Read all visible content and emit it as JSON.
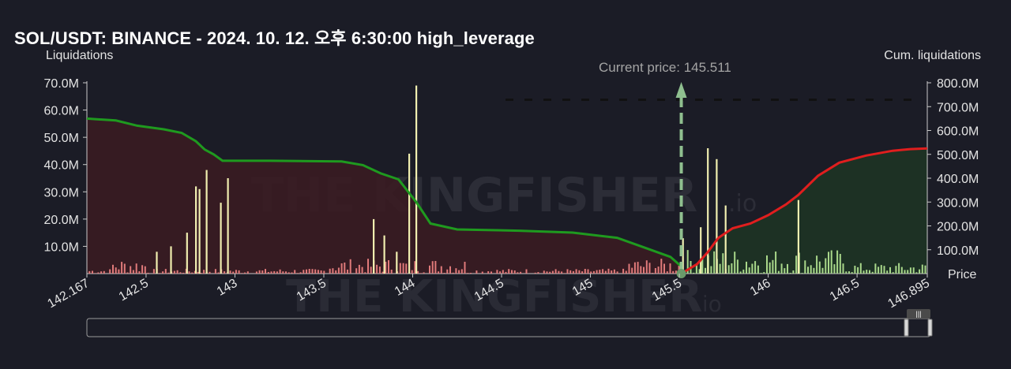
{
  "title": "SOL/USDT: BINANCE - 2024. 10. 12. 오후 6:30:00 high_leverage",
  "watermark": "THE KINGFISHER",
  "watermark_suffix": ".io",
  "colors": {
    "background": "#1b1c26",
    "long_line": "#1f9a1f",
    "short_line": "#e01e1e",
    "long_fill": "#3a1c22",
    "short_fill": "#1d3324",
    "bar_long": "#e07a7a",
    "bar_short": "#a9d88a",
    "bar_highlight": "#f1efb0",
    "current_price_line": "#8fbf8f"
  },
  "chart_data": {
    "type": "bar",
    "title": "SOL/USDT: BINANCE - 2024. 10. 12. 오후 6:30:00 high_leverage",
    "xlabel": "Price",
    "ylabel": "Liquidations",
    "ylabel_right": "Cum. liquidations",
    "xlim": [
      142.167,
      146.895
    ],
    "ylim": [
      0,
      70000000
    ],
    "ylim_right": [
      0,
      800000000
    ],
    "x_ticks": [
      "142.167",
      "142.5",
      "143",
      "143.5",
      "144",
      "144.5",
      "145",
      "145.5",
      "146",
      "146.5",
      "146.895"
    ],
    "y_ticks": [
      "10.0M",
      "20.0M",
      "30.0M",
      "40.0M",
      "50.0M",
      "60.0M",
      "70.0M"
    ],
    "y_ticks_right": [
      "100.0M",
      "200.0M",
      "300.0M",
      "400.0M",
      "500.0M",
      "600.0M",
      "700.0M",
      "800.0M"
    ],
    "current_price": 145.511,
    "current_price_label": "Current price: 145.511",
    "highlight_bars": [
      {
        "x": 142.56,
        "value": 8000000
      },
      {
        "x": 142.64,
        "value": 10000000
      },
      {
        "x": 142.73,
        "value": 15000000
      },
      {
        "x": 142.78,
        "value": 32000000
      },
      {
        "x": 142.8,
        "value": 31000000
      },
      {
        "x": 142.84,
        "value": 38000000
      },
      {
        "x": 142.92,
        "value": 26000000
      },
      {
        "x": 142.96,
        "value": 35000000
      },
      {
        "x": 143.78,
        "value": 20000000
      },
      {
        "x": 143.84,
        "value": 14000000
      },
      {
        "x": 143.91,
        "value": 8000000
      },
      {
        "x": 143.98,
        "value": 44000000
      },
      {
        "x": 144.02,
        "value": 69000000
      },
      {
        "x": 145.52,
        "value": 13000000
      },
      {
        "x": 145.62,
        "value": 17000000
      },
      {
        "x": 145.66,
        "value": 46000000
      },
      {
        "x": 145.71,
        "value": 42000000
      },
      {
        "x": 145.76,
        "value": 25000000
      },
      {
        "x": 146.17,
        "value": 27000000
      }
    ],
    "cum_long_points": [
      [
        142.167,
        650000000
      ],
      [
        142.33,
        642000000
      ],
      [
        142.45,
        620000000
      ],
      [
        142.6,
        605000000
      ],
      [
        142.7,
        590000000
      ],
      [
        142.78,
        555000000
      ],
      [
        142.83,
        520000000
      ],
      [
        142.88,
        500000000
      ],
      [
        142.93,
        473000000
      ],
      [
        143.2,
        473000000
      ],
      [
        143.6,
        470000000
      ],
      [
        143.72,
        455000000
      ],
      [
        143.82,
        420000000
      ],
      [
        143.92,
        395000000
      ],
      [
        144.02,
        300000000
      ],
      [
        144.1,
        210000000
      ],
      [
        144.25,
        185000000
      ],
      [
        144.6,
        180000000
      ],
      [
        144.9,
        172000000
      ],
      [
        145.15,
        150000000
      ],
      [
        145.3,
        110000000
      ],
      [
        145.45,
        70000000
      ],
      [
        145.511,
        30000000
      ]
    ],
    "cum_short_points": [
      [
        145.511,
        0
      ],
      [
        145.6,
        40000000
      ],
      [
        145.66,
        90000000
      ],
      [
        145.72,
        150000000
      ],
      [
        145.8,
        190000000
      ],
      [
        145.9,
        210000000
      ],
      [
        146.0,
        245000000
      ],
      [
        146.1,
        290000000
      ],
      [
        146.17,
        330000000
      ],
      [
        146.28,
        410000000
      ],
      [
        146.4,
        465000000
      ],
      [
        146.55,
        495000000
      ],
      [
        146.7,
        515000000
      ],
      [
        146.8,
        522000000
      ],
      [
        146.895,
        525000000
      ]
    ]
  }
}
